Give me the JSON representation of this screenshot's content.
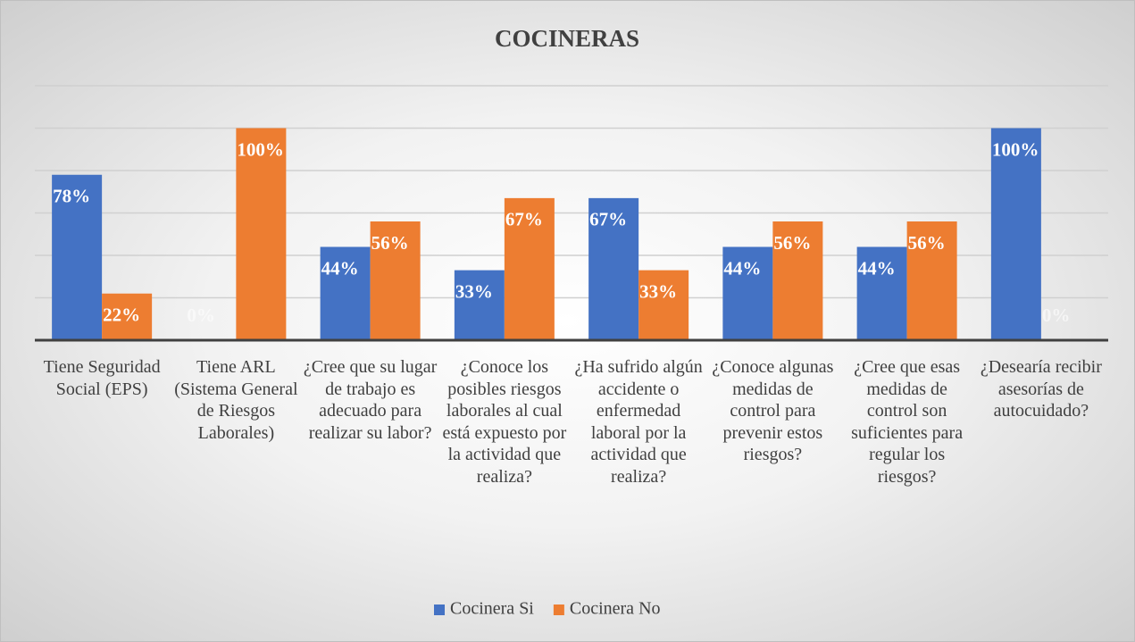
{
  "chart_data": {
    "type": "bar",
    "title": "COCINERAS",
    "categories": [
      "Tiene Seguridad Social (EPS)",
      "Tiene ARL (Sistema General de Riesgos Laborales)",
      "¿Cree que su lugar de trabajo es adecuado para realizar su labor?",
      "¿Conoce los posibles riesgos laborales al cual está expuesto por la actividad que realiza?",
      "¿Ha sufrido algún accidente o enfermedad laboral por la actividad que realiza?",
      "¿Conoce algunas medidas de control para prevenir estos riesgos?",
      "¿Cree que esas medidas de control son suficientes para regular los riesgos?",
      "¿Desearía recibir asesorías de autocuidado?"
    ],
    "series": [
      {
        "name": "Cocinera Si",
        "color": "#4472c4",
        "values": [
          78,
          0,
          44,
          33,
          67,
          44,
          44,
          100
        ],
        "value_labels": [
          "78%",
          "0%",
          "44%",
          "33%",
          "67%",
          "44%",
          "44%",
          "100%"
        ]
      },
      {
        "name": "Cocinera No",
        "color": "#ed7d31",
        "values": [
          22,
          100,
          56,
          67,
          33,
          56,
          56,
          0
        ],
        "value_labels": [
          "22%",
          "100%",
          "56%",
          "67%",
          "33%",
          "56%",
          "56%",
          "0%"
        ]
      }
    ],
    "ylim": [
      0,
      120
    ],
    "yticks": [
      0,
      20,
      40,
      60,
      80,
      100,
      120
    ],
    "grid": true,
    "legend": "bottom"
  }
}
